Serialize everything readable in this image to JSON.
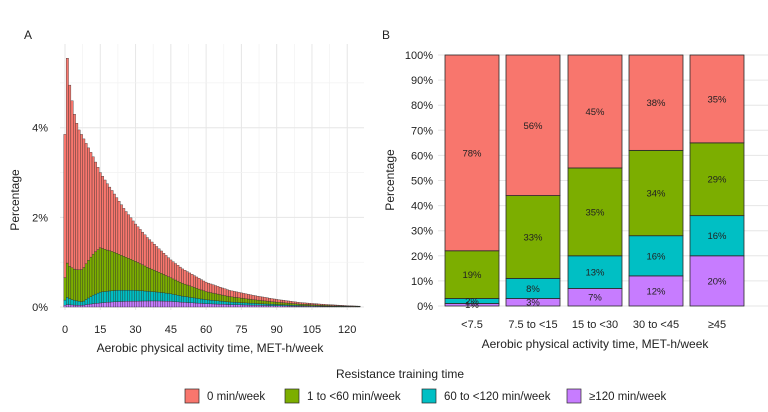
{
  "legend": {
    "title": "Resistance training time",
    "entries": [
      {
        "label": "0 min/week",
        "color": "#F8766D"
      },
      {
        "label": "1 to <60 min/week",
        "color": "#7CAE00"
      },
      {
        "label": "60 to <120 min/week",
        "color": "#00BFC4"
      },
      {
        "label": "≥120 min/week",
        "color": "#C77CFF"
      }
    ]
  },
  "chart_data": [
    {
      "panel_label": "A",
      "type": "bar",
      "stacked": true,
      "xlabel": "Aerobic physical activity time, MET-h/week",
      "ylabel": "Percentage",
      "xlim": [
        0,
        125
      ],
      "ylim": [
        0,
        5.8
      ],
      "x_ticks": [
        "0",
        "15",
        "30",
        "45",
        "60",
        "75",
        "90",
        "105",
        "120"
      ],
      "y_ticks": [
        "0%",
        "2%",
        "4%"
      ],
      "grid": true,
      "series_names": [
        "0 min/week",
        "1 to <60 min/week",
        "60 to <120 min/week",
        "≥120 min/week"
      ],
      "totals_keypoints": [
        [
          0,
          3.85
        ],
        [
          1,
          5.55
        ],
        [
          2,
          4.95
        ],
        [
          3,
          4.6
        ],
        [
          4,
          4.3
        ],
        [
          5,
          4.1
        ],
        [
          6,
          3.95
        ],
        [
          8,
          3.75
        ],
        [
          10,
          3.55
        ],
        [
          12,
          3.35
        ],
        [
          15,
          3.0
        ],
        [
          18,
          2.75
        ],
        [
          20,
          2.6
        ],
        [
          25,
          2.2
        ],
        [
          30,
          1.85
        ],
        [
          35,
          1.55
        ],
        [
          40,
          1.3
        ],
        [
          45,
          1.05
        ],
        [
          50,
          0.85
        ],
        [
          55,
          0.7
        ],
        [
          60,
          0.55
        ],
        [
          70,
          0.37
        ],
        [
          80,
          0.26
        ],
        [
          90,
          0.17
        ],
        [
          100,
          0.1
        ],
        [
          110,
          0.06
        ],
        [
          120,
          0.03
        ],
        [
          125,
          0.02
        ]
      ],
      "resistance_share_by_x": {
        "x": [
          0,
          7.5,
          15,
          30,
          45,
          125
        ],
        "0_min_week": [
          0.83,
          0.78,
          0.56,
          0.45,
          0.38,
          0.35
        ],
        "1_to_60_min_week": [
          0.13,
          0.19,
          0.33,
          0.35,
          0.34,
          0.29
        ],
        "60_to_120_min_week": [
          0.03,
          0.02,
          0.08,
          0.13,
          0.16,
          0.16
        ],
        "120_plus_min_week": [
          0.01,
          0.01,
          0.03,
          0.07,
          0.12,
          0.2
        ]
      }
    },
    {
      "panel_label": "B",
      "type": "bar",
      "stacked": true,
      "xlabel": "Aerobic physical activity time, MET-h/week",
      "ylabel": "Percentage",
      "ylim": [
        0,
        100
      ],
      "y_ticks": [
        "0%",
        "10%",
        "20%",
        "30%",
        "40%",
        "50%",
        "60%",
        "70%",
        "80%",
        "90%",
        "100%"
      ],
      "categories": [
        "<7.5",
        "7.5 to <15",
        "15 to <30",
        "30 to <45",
        "≥45"
      ],
      "series": [
        {
          "name": "≥120 min/week",
          "values": [
            1,
            3,
            7,
            12,
            20
          ],
          "labels": [
            "1%",
            "3%",
            "7%",
            "12%",
            "20%"
          ]
        },
        {
          "name": "60 to <120 min/week",
          "values": [
            2,
            8,
            13,
            16,
            16
          ],
          "labels": [
            "2%",
            "8%",
            "13%",
            "16%",
            "16%"
          ]
        },
        {
          "name": "1 to <60 min/week",
          "values": [
            19,
            33,
            35,
            34,
            29
          ],
          "labels": [
            "19%",
            "33%",
            "35%",
            "34%",
            "29%"
          ]
        },
        {
          "name": "0 min/week",
          "values": [
            78,
            56,
            45,
            38,
            35
          ],
          "labels": [
            "78%",
            "56%",
            "45%",
            "38%",
            "35%"
          ]
        }
      ]
    }
  ]
}
